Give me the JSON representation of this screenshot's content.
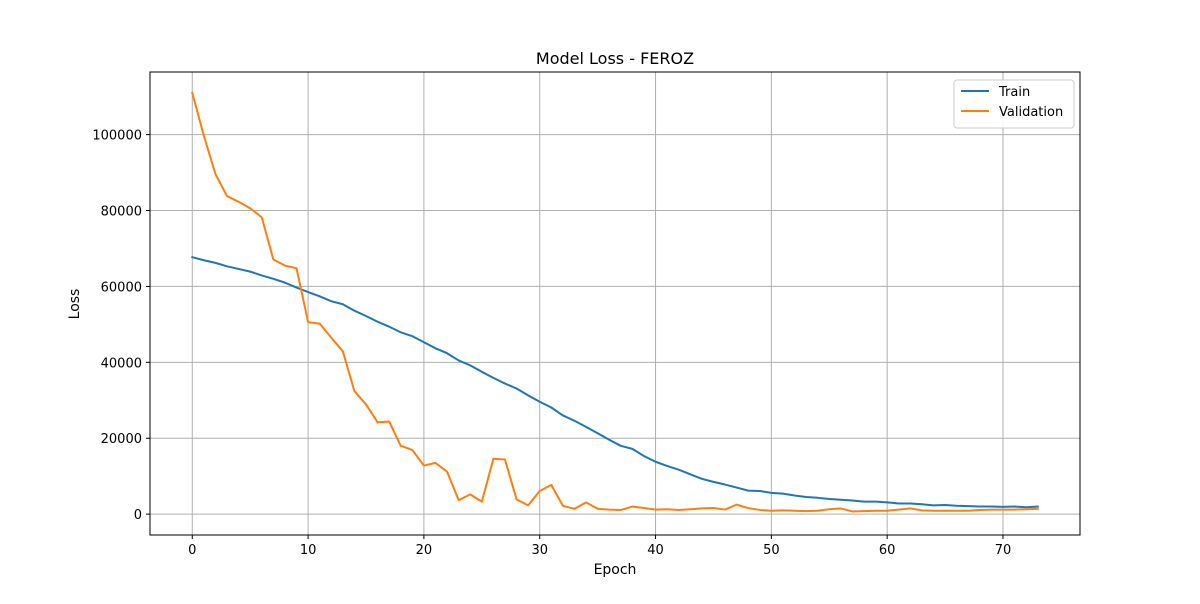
{
  "chart_data": {
    "type": "line",
    "title": "Model Loss - FEROZ",
    "xlabel": "Epoch",
    "ylabel": "Loss",
    "xlim": [
      -3.65,
      76.65
    ],
    "ylim": [
      -5500,
      116500
    ],
    "x_ticks": [
      0,
      10,
      20,
      30,
      40,
      50,
      60,
      70
    ],
    "y_ticks": [
      0,
      20000,
      40000,
      60000,
      80000,
      100000
    ],
    "grid": true,
    "legend_position": "top-right",
    "series": [
      {
        "name": "Train",
        "color": "#1f77b4",
        "x": [
          0,
          1,
          2,
          3,
          4,
          5,
          6,
          7,
          8,
          9,
          10,
          11,
          12,
          13,
          14,
          15,
          16,
          17,
          18,
          19,
          20,
          21,
          22,
          23,
          24,
          25,
          26,
          27,
          28,
          29,
          30,
          31,
          32,
          33,
          34,
          35,
          36,
          37,
          38,
          39,
          40,
          41,
          42,
          43,
          44,
          45,
          46,
          47,
          48,
          49,
          50,
          51,
          52,
          53,
          54,
          55,
          56,
          57,
          58,
          59,
          60,
          61,
          62,
          63,
          64,
          65,
          66,
          67,
          68,
          69,
          70,
          71,
          72,
          73
        ],
        "values": [
          67700,
          66900,
          66200,
          65300,
          64600,
          63900,
          62900,
          62000,
          61000,
          59700,
          58500,
          57400,
          56100,
          55300,
          53600,
          52200,
          50700,
          49400,
          47900,
          46900,
          45300,
          43700,
          42400,
          40500,
          39200,
          37500,
          35900,
          34400,
          33100,
          31300,
          29600,
          28100,
          26000,
          24600,
          23000,
          21300,
          19600,
          18000,
          17200,
          15300,
          13800,
          12700,
          11700,
          10500,
          9300,
          8500,
          7800,
          7000,
          6200,
          6100,
          5600,
          5400,
          4900,
          4500,
          4300,
          4000,
          3800,
          3600,
          3300,
          3300,
          3100,
          2800,
          2800,
          2600,
          2300,
          2400,
          2200,
          2100,
          2000,
          2000,
          1900,
          2000,
          1800,
          2000
        ]
      },
      {
        "name": "Validation",
        "color": "#ff7f0e",
        "x": [
          0,
          1,
          2,
          3,
          4,
          5,
          6,
          7,
          8,
          9,
          10,
          11,
          12,
          13,
          14,
          15,
          16,
          17,
          18,
          19,
          20,
          21,
          22,
          23,
          24,
          25,
          26,
          27,
          28,
          29,
          30,
          31,
          32,
          33,
          34,
          35,
          36,
          37,
          38,
          39,
          40,
          41,
          42,
          43,
          44,
          45,
          46,
          47,
          48,
          49,
          50,
          51,
          52,
          53,
          54,
          55,
          56,
          57,
          58,
          59,
          60,
          61,
          62,
          63,
          64,
          65,
          66,
          67,
          68,
          69,
          70,
          71,
          72,
          73
        ],
        "values": [
          111000,
          99700,
          89600,
          83800,
          82300,
          80600,
          78200,
          67100,
          65500,
          64800,
          50600,
          50200,
          46500,
          42900,
          32400,
          28900,
          24200,
          24400,
          18000,
          16900,
          12800,
          13500,
          11200,
          3700,
          5200,
          3300,
          14600,
          14400,
          3900,
          2300,
          6100,
          7700,
          2200,
          1400,
          3100,
          1400,
          1200,
          1100,
          2000,
          1600,
          1200,
          1300,
          1100,
          1300,
          1500,
          1600,
          1200,
          2500,
          1600,
          1100,
          900,
          1000,
          900,
          800,
          900,
          1300,
          1500,
          700,
          800,
          900,
          900,
          1200,
          1500,
          1000,
          900,
          900,
          900,
          900,
          1100,
          1200,
          1200,
          1200,
          1300,
          1400
        ]
      }
    ]
  }
}
